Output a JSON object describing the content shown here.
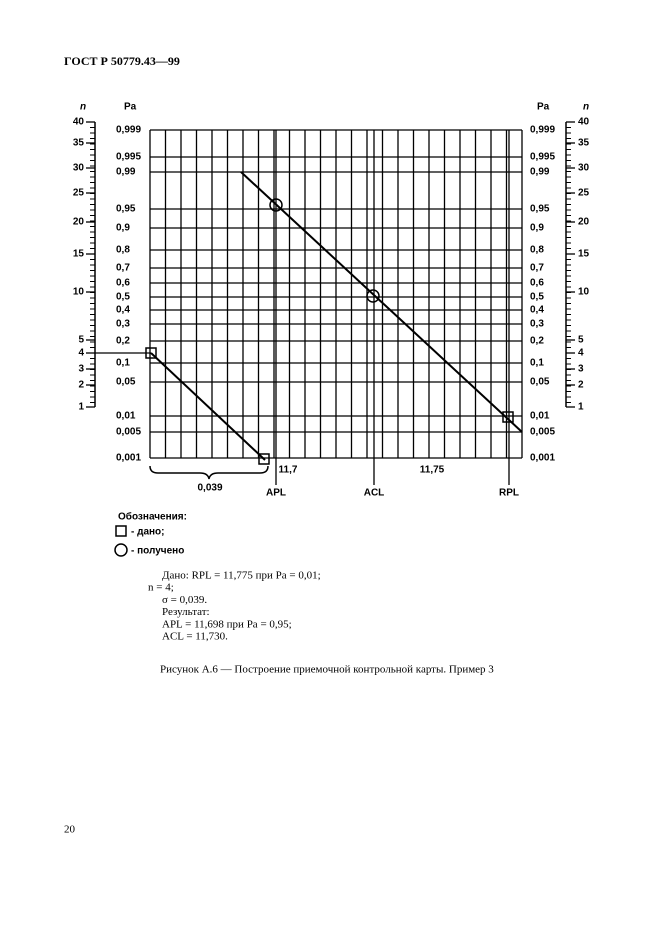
{
  "header": {
    "title": "ГОСТ Р 50779.43—99"
  },
  "figure": {
    "n_label": "n",
    "pa_label": "Pa",
    "pa_ticks": [
      "0,999",
      "0,995",
      "0,99",
      "0,95",
      "0,9",
      "0,8",
      "0,7",
      "0,6",
      "0,5",
      "0,4",
      "0,3",
      "0,2",
      "0,1",
      "0,05",
      "0,01",
      "0,005",
      "0,001"
    ],
    "n_ticks": [
      "40",
      "35",
      "30",
      "25",
      "20",
      "15",
      "10",
      "5",
      "4",
      "3",
      "2",
      "1"
    ],
    "x_labels": [
      "11,7",
      "11,75"
    ],
    "spread_label": "0,039",
    "limit_labels": [
      "APL",
      "ACL",
      "RPL"
    ],
    "legend": {
      "title": "Обозначения:",
      "items": [
        "- дано;",
        "- получено"
      ]
    }
  },
  "given": [
    "Дано: RPL = 11,775 при Pa = 0,01;",
    "n = 4;",
    "σ = 0,039.",
    "Результат:",
    "APL = 11,698 при Pa = 0,95;",
    "ACL = 11,730."
  ],
  "caption": "Рисунок А.6 — Построение приемочной контрольной карты. Пример 3",
  "page_number": "20"
}
